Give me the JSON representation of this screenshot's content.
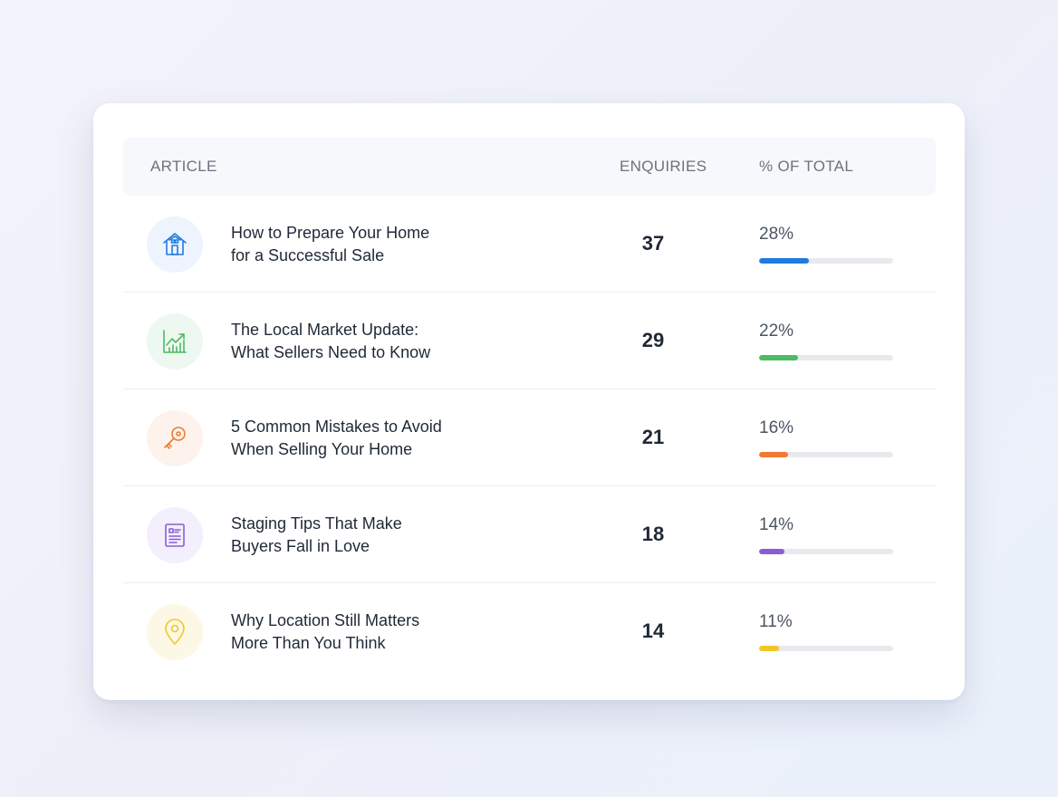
{
  "table": {
    "headers": {
      "article": "ARTICLE",
      "enquiries": "ENQUIRIES",
      "percent": "% OF TOTAL"
    },
    "rows": [
      {
        "icon": "house-icon",
        "title_line1": "How to Prepare Your Home",
        "title_line2": "for a Successful Sale",
        "enquiries": "37",
        "percent_label": "28%",
        "percent_value": 28,
        "accent": "#1e7be0",
        "icon_bg": "#eef4fd"
      },
      {
        "icon": "chart-icon",
        "title_line1": "The Local Market Update:",
        "title_line2": "What Sellers Need to Know",
        "enquiries": "29",
        "percent_label": "22%",
        "percent_value": 22,
        "accent": "#4dbb63",
        "icon_bg": "#edf8f0"
      },
      {
        "icon": "key-icon",
        "title_line1": "5 Common Mistakes to Avoid",
        "title_line2": "When Selling Your Home",
        "enquiries": "21",
        "percent_label": "16%",
        "percent_value": 16,
        "accent": "#f07a32",
        "icon_bg": "#fdf3ec"
      },
      {
        "icon": "document-icon",
        "title_line1": "Staging Tips That Make",
        "title_line2": "Buyers Fall in Love",
        "enquiries": "18",
        "percent_label": "14%",
        "percent_value": 14,
        "accent": "#8b5cd6",
        "icon_bg": "#f4effc"
      },
      {
        "icon": "location-pin-icon",
        "title_line1": "Why Location Still Matters",
        "title_line2": "More Than You Think",
        "enquiries": "14",
        "percent_label": "11%",
        "percent_value": 11,
        "accent": "#f2c626",
        "icon_bg": "#fdf8e6"
      }
    ]
  }
}
